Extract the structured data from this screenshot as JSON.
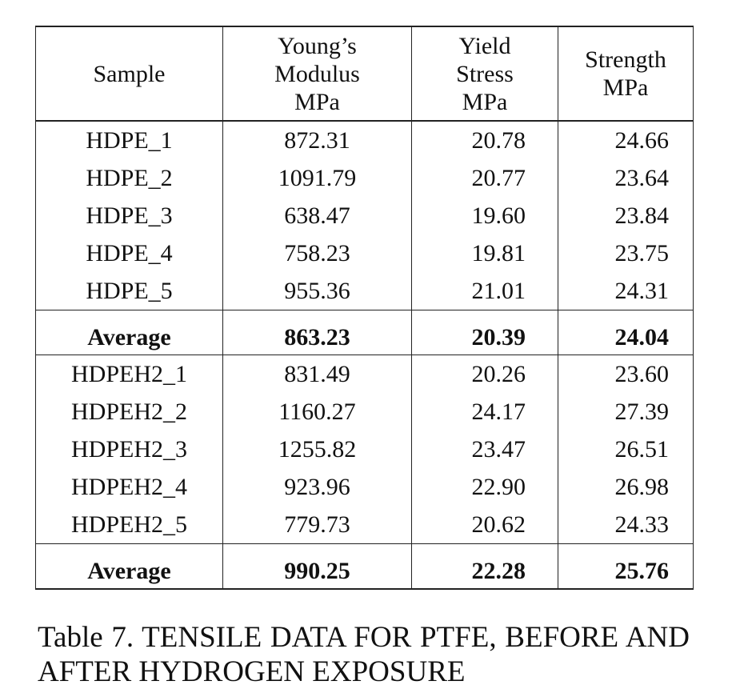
{
  "table": {
    "headers": {
      "sample": "Sample",
      "youngs_modulus": [
        "Young’s",
        "Modulus",
        "MPa"
      ],
      "yield_stress": [
        "Yield",
        "Stress",
        "MPa"
      ],
      "strength": [
        "Strength",
        "MPa"
      ]
    },
    "rows": [
      {
        "sample": "HDPE_1",
        "modulus": "872.31",
        "yield": "20.78",
        "strength": "24.66",
        "average": false
      },
      {
        "sample": "HDPE_2",
        "modulus": "1091.79",
        "yield": "20.77",
        "strength": "23.64",
        "average": false
      },
      {
        "sample": "HDPE_3",
        "modulus": "638.47",
        "yield": "19.60",
        "strength": "23.84",
        "average": false
      },
      {
        "sample": "HDPE_4",
        "modulus": "758.23",
        "yield": "19.81",
        "strength": "23.75",
        "average": false
      },
      {
        "sample": "HDPE_5",
        "modulus": "955.36",
        "yield": "21.01",
        "strength": "24.31",
        "average": false
      },
      {
        "sample": "Average",
        "modulus": "863.23",
        "yield": "20.39",
        "strength": "24.04",
        "average": true
      },
      {
        "sample": "HDPEH2_1",
        "modulus": "831.49",
        "yield": "20.26",
        "strength": "23.60",
        "average": false
      },
      {
        "sample": "HDPEH2_2",
        "modulus": "1160.27",
        "yield": "24.17",
        "strength": "27.39",
        "average": false
      },
      {
        "sample": "HDPEH2_3",
        "modulus": "1255.82",
        "yield": "23.47",
        "strength": "26.51",
        "average": false
      },
      {
        "sample": "HDPEH2_4",
        "modulus": "923.96",
        "yield": "22.90",
        "strength": "26.98",
        "average": false
      },
      {
        "sample": "HDPEH2_5",
        "modulus": "779.73",
        "yield": "20.62",
        "strength": "24.33",
        "average": false
      },
      {
        "sample": "Average",
        "modulus": "990.25",
        "yield": "22.28",
        "strength": "25.76",
        "average": true
      }
    ]
  },
  "caption": "Table 7. TENSILE DATA FOR PTFE, BEFORE AND AFTER HYDROGEN EXPOSURE"
}
